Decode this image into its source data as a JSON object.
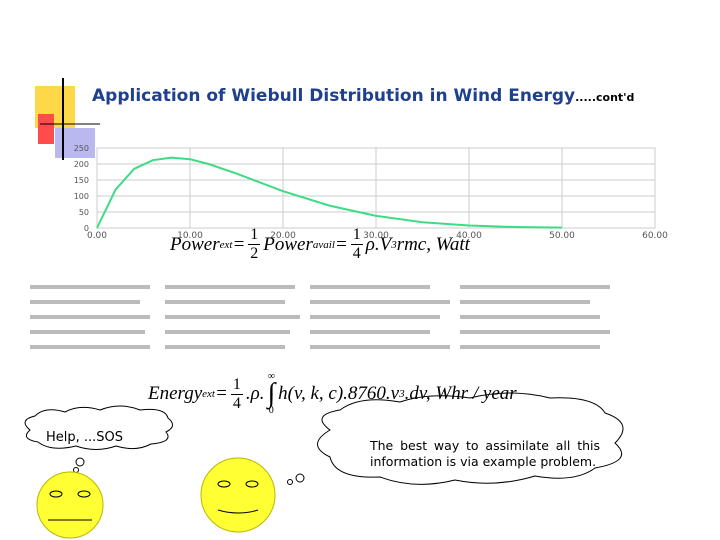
{
  "title": "Application of Wiebull Distribution in Wind Energy",
  "title_suffix": ".....cont'd",
  "chart": {
    "type": "line",
    "x": [
      0,
      1,
      2,
      4,
      6,
      8,
      10,
      12,
      15,
      20,
      25,
      30,
      35,
      40,
      45,
      50
    ],
    "values": [
      0,
      60,
      120,
      185,
      212,
      220,
      215,
      200,
      170,
      115,
      70,
      38,
      18,
      8,
      3,
      1
    ],
    "color": "#3ddc84",
    "xlim": [
      0,
      60
    ],
    "xticks": [
      {
        "value": 0,
        "label": "0.00"
      },
      {
        "value": 10,
        "label": "10.00"
      },
      {
        "value": 20,
        "label": "20.00"
      },
      {
        "value": 30,
        "label": "30.00"
      },
      {
        "value": 40,
        "label": "40.00"
      },
      {
        "value": 50,
        "label": "50.00"
      },
      {
        "value": 60,
        "label": "60.00"
      }
    ],
    "ylim": [
      0,
      250
    ],
    "yticks": [
      0,
      50,
      100,
      150,
      200,
      250
    ],
    "grid": true
  },
  "formulas": [
    [
      {
        "t": "Power"
      },
      {
        "sub": "ext"
      },
      {
        "t": " = "
      },
      {
        "frac": [
          "1",
          "2"
        ]
      },
      {
        "t": "Power"
      },
      {
        "sub": "avail"
      },
      {
        "t": " = "
      },
      {
        "frac": [
          "1",
          "4"
        ]
      },
      {
        "t": "ρ.V"
      },
      {
        "sup": "3"
      },
      {
        "t": "rmc, Watt"
      }
    ],
    [
      {
        "t": "Energy"
      },
      {
        "sub": "ext"
      },
      {
        "t": " = "
      },
      {
        "frac": [
          "1",
          "4"
        ]
      },
      {
        "t": ".ρ."
      },
      {
        "int": [
          "∞",
          "0"
        ]
      },
      {
        "t": "h(v, k, c).8760.v"
      },
      {
        "sup": "3"
      },
      {
        "t": ".dv, Whr / year"
      }
    ]
  ],
  "bubbles": [
    "Help, ...SOS",
    "The best way to assimilate all this information is via example problem."
  ]
}
